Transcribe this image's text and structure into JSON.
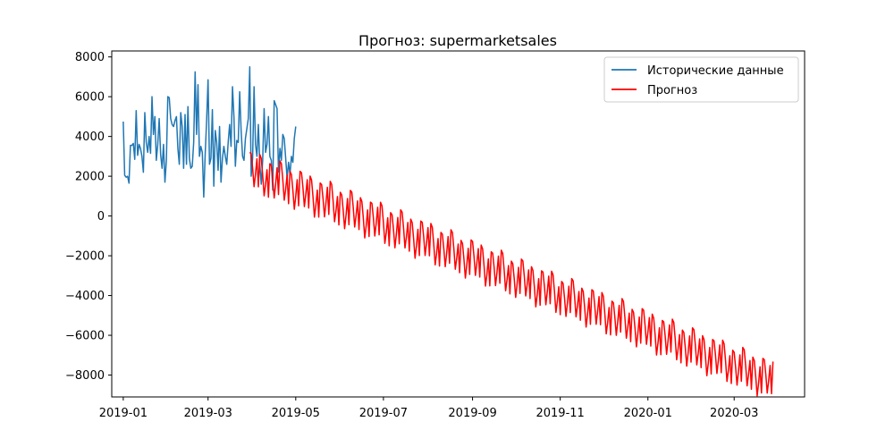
{
  "chart_data": {
    "type": "line",
    "title": "Прогноз: supermarketsales",
    "xlabel": "",
    "ylabel": "",
    "x_axis_type": "date",
    "xlim": [
      "2018-12-24",
      "2020-04-19"
    ],
    "ylim": [
      -9100,
      8300
    ],
    "x_ticks": [
      "2019-01",
      "2019-03",
      "2019-05",
      "2019-07",
      "2019-09",
      "2019-11",
      "2020-01",
      "2020-03"
    ],
    "y_ticks": [
      8000,
      6000,
      4000,
      2000,
      0,
      -2000,
      -4000,
      -6000,
      -8000
    ],
    "y_tick_labels": [
      "8000",
      "6000",
      "4000",
      "2000",
      "0",
      "−2000",
      "−4000",
      "−6000",
      "−8000"
    ],
    "grid": false,
    "legend_position": "top-right",
    "legend": [
      "Исторические данные",
      "Прогноз"
    ],
    "series": [
      {
        "name": "Исторические данные",
        "color": "#1f77b4",
        "start_date": "2019-01-01",
        "step_days": 1,
        "values": [
          4750,
          2050,
          1950,
          2000,
          1650,
          3550,
          3550,
          3650,
          2850,
          5300,
          3050,
          3600,
          3400,
          3000,
          2200,
          5200,
          3700,
          3200,
          4000,
          3150,
          6000,
          4100,
          5000,
          2800,
          3600,
          4900,
          3100,
          2400,
          3600,
          1700,
          2800,
          6000,
          5950,
          4900,
          4600,
          4500,
          4800,
          5000,
          3400,
          2600,
          5200,
          4500,
          2400,
          5100,
          2600,
          5500,
          2900,
          2400,
          2500,
          3700,
          7250,
          4100,
          6600,
          3000,
          3500,
          3200,
          950,
          3100,
          4800,
          6850,
          2600,
          2900,
          5350,
          1500,
          4300,
          3700,
          2300,
          4500,
          1700,
          2900,
          3500,
          3000,
          2600,
          3700,
          4600,
          3500,
          6500,
          5000,
          2500,
          3800,
          3700,
          6250,
          4300,
          3000,
          2800,
          3900,
          4400,
          4900,
          7500,
          2000,
          2900,
          6500,
          3600,
          3000,
          4600,
          2600,
          1600,
          2800,
          5400,
          3200,
          3600,
          5000,
          3000,
          2800,
          1300,
          5800,
          5600,
          5400,
          2200,
          3400,
          2800,
          4100,
          3900,
          2900,
          1900,
          2700,
          2100,
          3000,
          2700,
          3900,
          4500
        ]
      },
      {
        "name": "Прогноз",
        "color": "#ff0000",
        "start_date": "2019-03-30"
      }
    ]
  }
}
